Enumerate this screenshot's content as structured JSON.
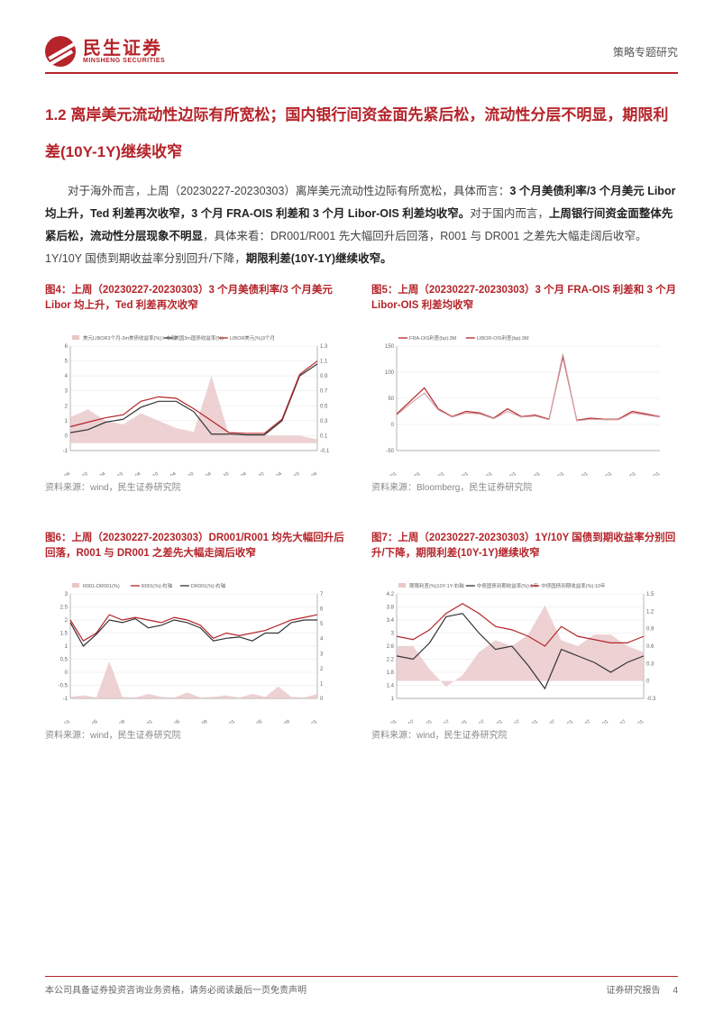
{
  "header": {
    "logo_cn": "民生证券",
    "logo_en": "MINSHENG SECURITIES",
    "doc_type": "策略专题研究"
  },
  "section_title": "1.2 离岸美元流动性边际有所宽松；国内银行间资金面先紧后松，流动性分层不明显，期限利差(10Y-1Y)继续收窄",
  "body_html": "对于海外而言，上周（20230227-20230303）离岸美元流动性边际有所宽松，具体而言：<b>3 个月美债利率/3 个月美元 Libor 均上升，Ted 利差再次收窄，3 个月 FRA-OIS 利差和 3 个月 Libor-OIS 利差均收窄。</b>对于国内而言，<b>上周银行间资金面整体先紧后松，流动性分层现象不明显</b>，具体来看：DR001/R001 先大幅回升后回落，R001 与 DR001 之差先大幅走阔后收窄。1Y/10Y 国债到期收益率分别回升/下降，<b>期限利差(10Y-1Y)继续收窄。</b>",
  "charts": {
    "c4": {
      "title": "图4：上周（20230227-20230303）3 个月美债利率/3 个月美元 Libor 均上升，Ted 利差再次收窄",
      "source": "资料来源：wind，民生证券研究院",
      "type": "line-area-dual-axis",
      "colors": {
        "area": "#e8c6c8",
        "line1": "#333333",
        "line2": "#b5242a",
        "grid": "#e6e6e6",
        "bg": "#ffffff"
      },
      "y_left": {
        "min": -1,
        "max": 6,
        "step": 1
      },
      "y_right": {
        "min": -0.1,
        "max": 1.3,
        "step": 0.2
      },
      "x_labels": [
        "2016-04",
        "2016-10",
        "2017-04",
        "2017-10",
        "2018-04",
        "2018-10",
        "2019-04",
        "2019-10",
        "2020-04",
        "2020-10",
        "2021-04",
        "2021-10",
        "2022-04",
        "2022-10",
        "2023-04"
      ],
      "legend": [
        "美元LIBOR3个月-3m美债收益率(%)：右轴",
        "美国3m国债收益率(%)",
        "LIBOR美元(%)3个月"
      ],
      "area_vals": [
        0.35,
        0.45,
        0.3,
        0.25,
        0.4,
        0.3,
        0.2,
        0.15,
        0.9,
        0.1,
        0.1,
        0.1,
        0.1,
        0.1,
        0.05
      ],
      "line1_vals": [
        0.2,
        0.4,
        0.9,
        1.1,
        1.9,
        2.3,
        2.3,
        1.6,
        0.1,
        0.1,
        0.05,
        0.05,
        1.0,
        4.0,
        4.8
      ],
      "line2_vals": [
        0.6,
        0.9,
        1.2,
        1.4,
        2.3,
        2.6,
        2.5,
        1.8,
        1.0,
        0.2,
        0.15,
        0.15,
        1.1,
        4.1,
        5.0
      ]
    },
    "c5": {
      "title": "图5：上周（20230227-20230303）3 个月 FRA-OIS 利差和 3 个月 Libor-OIS 利差均收窄",
      "source": "资料来源：Bloomberg，民生证券研究院",
      "type": "line",
      "colors": {
        "line1": "#b5242a",
        "line2": "#d4a5a8",
        "grid": "#e6e6e6",
        "bg": "#ffffff"
      },
      "y_left": {
        "min": -50,
        "max": 150,
        "step": 50
      },
      "x_labels": [
        "2010/01",
        "2012/01",
        "2014/01",
        "2015/01",
        "2016/01",
        "2017/01",
        "2018/01",
        "2019/01",
        "2020/01",
        "2021/01",
        "2022/01",
        "2023/01"
      ],
      "legend": [
        "FRA-OIS利差(bp):3M",
        "LIBOR-OIS利差(bp):3M"
      ],
      "line1_vals": [
        20,
        45,
        70,
        30,
        15,
        25,
        22,
        12,
        30,
        15,
        18,
        10,
        130,
        8,
        12,
        10,
        10,
        25,
        20,
        15
      ],
      "line2_vals": [
        18,
        40,
        60,
        28,
        14,
        22,
        20,
        11,
        25,
        14,
        16,
        9,
        135,
        7,
        10,
        9,
        9,
        22,
        18,
        14
      ]
    },
    "c6": {
      "title": "图6：上周（20230227-20230303）DR001/R001 均先大幅回升后回落，R001 与 DR001 之差先大幅走阔后收窄",
      "source": "资料来源：wind，民生证券研究院",
      "type": "line-area-dual-axis",
      "colors": {
        "area": "#e8c6c8",
        "line1": "#b5242a",
        "line2": "#333333",
        "grid": "#e6e6e6",
        "bg": "#ffffff"
      },
      "y_left": {
        "min": -1.0,
        "max": 3.0,
        "step": 0.5
      },
      "y_right": {
        "min": 0,
        "max": 7,
        "step": 1
      },
      "x_labels": [
        "2020-01",
        "2020-05",
        "2020-09",
        "2021-01",
        "2021-05",
        "2021-09",
        "2022-01",
        "2022-05",
        "2022-09",
        "2023-01"
      ],
      "legend": [
        "R001-DR001(%)",
        "R001(%):右轴",
        "DR001(%):右轴"
      ],
      "area_vals": [
        0.1,
        0.2,
        0.05,
        2.5,
        0.1,
        0.05,
        0.3,
        0.1,
        0.05,
        0.4,
        0.05,
        0.1,
        0.2,
        0.05,
        0.3,
        0.1,
        0.8,
        0.1,
        0.05,
        0.3
      ],
      "line1_vals": [
        2.0,
        1.2,
        1.5,
        2.2,
        2.0,
        2.1,
        2.0,
        1.9,
        2.1,
        2.0,
        1.8,
        1.3,
        1.5,
        1.4,
        1.5,
        1.6,
        1.8,
        2.0,
        2.1,
        2.2
      ],
      "line2_vals": [
        1.9,
        1.0,
        1.45,
        2.0,
        1.9,
        2.05,
        1.7,
        1.8,
        2.0,
        1.9,
        1.7,
        1.2,
        1.3,
        1.35,
        1.2,
        1.5,
        1.5,
        1.9,
        2.0,
        2.0
      ]
    },
    "c7": {
      "title": "图7：上周（20230227-20230303）1Y/10Y 国债到期收益率分别回升/下降，期限利差(10Y-1Y)继续收窄",
      "source": "资料来源：wind，民生证券研究院",
      "type": "line-area-dual-axis",
      "colors": {
        "area": "#e8c6c8",
        "line1": "#333333",
        "line2": "#b5242a",
        "grid": "#e6e6e6",
        "bg": "#ffffff"
      },
      "y_left": {
        "min": 1.0,
        "max": 4.2,
        "step": 0.4
      },
      "y_right": {
        "min": -0.3,
        "max": 1.5,
        "step": 0.3
      },
      "x_labels": [
        "2016-01",
        "2016-07",
        "2017-01",
        "2017-07",
        "2018-01",
        "2018-07",
        "2019-01",
        "2019-07",
        "2020-01",
        "2020-07",
        "2021-01",
        "2021-07",
        "2022-01",
        "2022-07",
        "2023-01"
      ],
      "legend": [
        "期限利差(%)10Y-1Y:右轴",
        "中债国债到期收益率(%):1年",
        "中债国债到期收益率(%):10年"
      ],
      "area_vals": [
        0.6,
        0.6,
        0.2,
        -0.1,
        0.1,
        0.5,
        0.7,
        0.6,
        0.8,
        1.3,
        0.7,
        0.6,
        0.8,
        0.8,
        0.6,
        0.5
      ],
      "line1_vals": [
        2.3,
        2.2,
        2.7,
        3.5,
        3.6,
        3.0,
        2.5,
        2.6,
        2.0,
        1.3,
        2.5,
        2.3,
        2.1,
        1.8,
        2.1,
        2.3
      ],
      "line2_vals": [
        2.9,
        2.8,
        3.1,
        3.6,
        3.9,
        3.6,
        3.2,
        3.1,
        2.9,
        2.6,
        3.2,
        2.9,
        2.8,
        2.7,
        2.7,
        2.9
      ]
    }
  },
  "footer": {
    "left": "本公司具备证券投资咨询业务资格，请务必阅读最后一页免责声明",
    "right_label": "证券研究报告",
    "page_no": "4"
  }
}
